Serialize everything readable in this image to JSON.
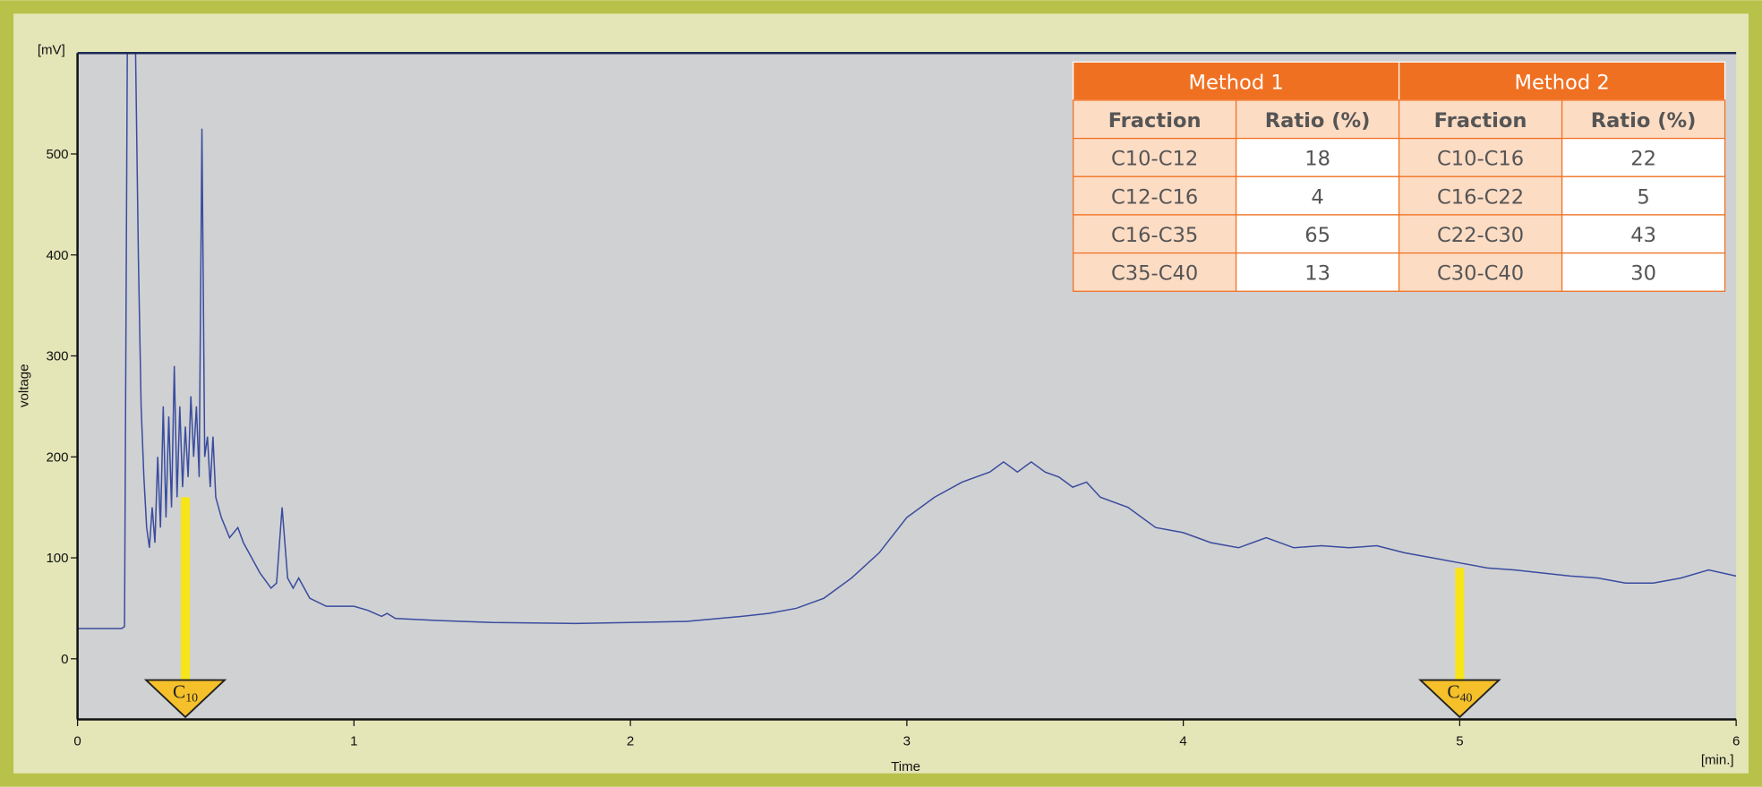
{
  "chart_data": {
    "type": "line",
    "y_unit": "[mV]",
    "ylabel": "voltage",
    "xlabel": "Time",
    "x_unit": "[min.]",
    "xlim": [
      0,
      6
    ],
    "xticks": [
      0,
      1,
      2,
      3,
      4,
      5,
      6
    ],
    "ylim": [
      -60,
      600
    ],
    "yticks": [
      0,
      100,
      200,
      300,
      400,
      500
    ],
    "x": [
      0,
      0.16,
      0.17,
      0.18,
      0.21,
      0.22,
      0.23,
      0.24,
      0.25,
      0.26,
      0.27,
      0.28,
      0.29,
      0.3,
      0.31,
      0.32,
      0.33,
      0.34,
      0.35,
      0.36,
      0.37,
      0.38,
      0.39,
      0.4,
      0.41,
      0.42,
      0.43,
      0.44,
      0.45,
      0.46,
      0.47,
      0.48,
      0.49,
      0.5,
      0.52,
      0.55,
      0.58,
      0.6,
      0.63,
      0.66,
      0.7,
      0.72,
      0.74,
      0.76,
      0.78,
      0.8,
      0.84,
      0.9,
      1.0,
      1.05,
      1.1,
      1.12,
      1.15,
      1.3,
      1.5,
      1.8,
      2.0,
      2.2,
      2.4,
      2.5,
      2.6,
      2.7,
      2.8,
      2.9,
      3.0,
      3.1,
      3.2,
      3.3,
      3.35,
      3.4,
      3.45,
      3.5,
      3.55,
      3.6,
      3.65,
      3.7,
      3.8,
      3.9,
      4.0,
      4.1,
      4.2,
      4.3,
      4.4,
      4.5,
      4.6,
      4.7,
      4.8,
      4.9,
      5.0,
      5.1,
      5.2,
      5.3,
      5.4,
      5.5,
      5.6,
      5.7,
      5.8,
      5.9,
      6.0
    ],
    "series": [
      {
        "color": "#3a4c9e",
        "values": [
          30,
          30,
          32,
          600,
          600,
          400,
          250,
          180,
          130,
          110,
          150,
          115,
          200,
          130,
          250,
          140,
          240,
          150,
          290,
          160,
          250,
          170,
          230,
          180,
          260,
          200,
          250,
          180,
          525,
          200,
          220,
          170,
          220,
          160,
          140,
          120,
          130,
          115,
          100,
          85,
          70,
          75,
          150,
          80,
          70,
          80,
          60,
          52,
          52,
          48,
          42,
          45,
          40,
          38,
          36,
          35,
          36,
          37,
          42,
          45,
          50,
          60,
          80,
          105,
          140,
          160,
          175,
          185,
          195,
          185,
          195,
          185,
          180,
          170,
          175,
          160,
          150,
          130,
          125,
          115,
          110,
          120,
          110,
          112,
          110,
          112,
          105,
          100,
          95,
          90,
          88,
          85,
          82,
          80,
          75,
          75,
          80,
          88,
          82
        ]
      }
    ],
    "markers": [
      {
        "letter": "C",
        "subscript": "10",
        "x": 0.39,
        "y": 160
      },
      {
        "letter": "C",
        "subscript": "40",
        "x": 5.0,
        "y": 90
      }
    ]
  },
  "table": {
    "groups": [
      "Method 1",
      "Method 2"
    ],
    "columns": [
      "Fraction",
      "Ratio (%)",
      "Fraction",
      "Ratio (%)"
    ],
    "rows": [
      [
        "C10-C12",
        "18",
        "C10-C16",
        "22"
      ],
      [
        "C12-C16",
        "4",
        "C16-C22",
        "5"
      ],
      [
        "C16-C35",
        "65",
        "C22-C30",
        "43"
      ],
      [
        "C35-C40",
        "13",
        "C30-C40",
        "30"
      ]
    ]
  }
}
